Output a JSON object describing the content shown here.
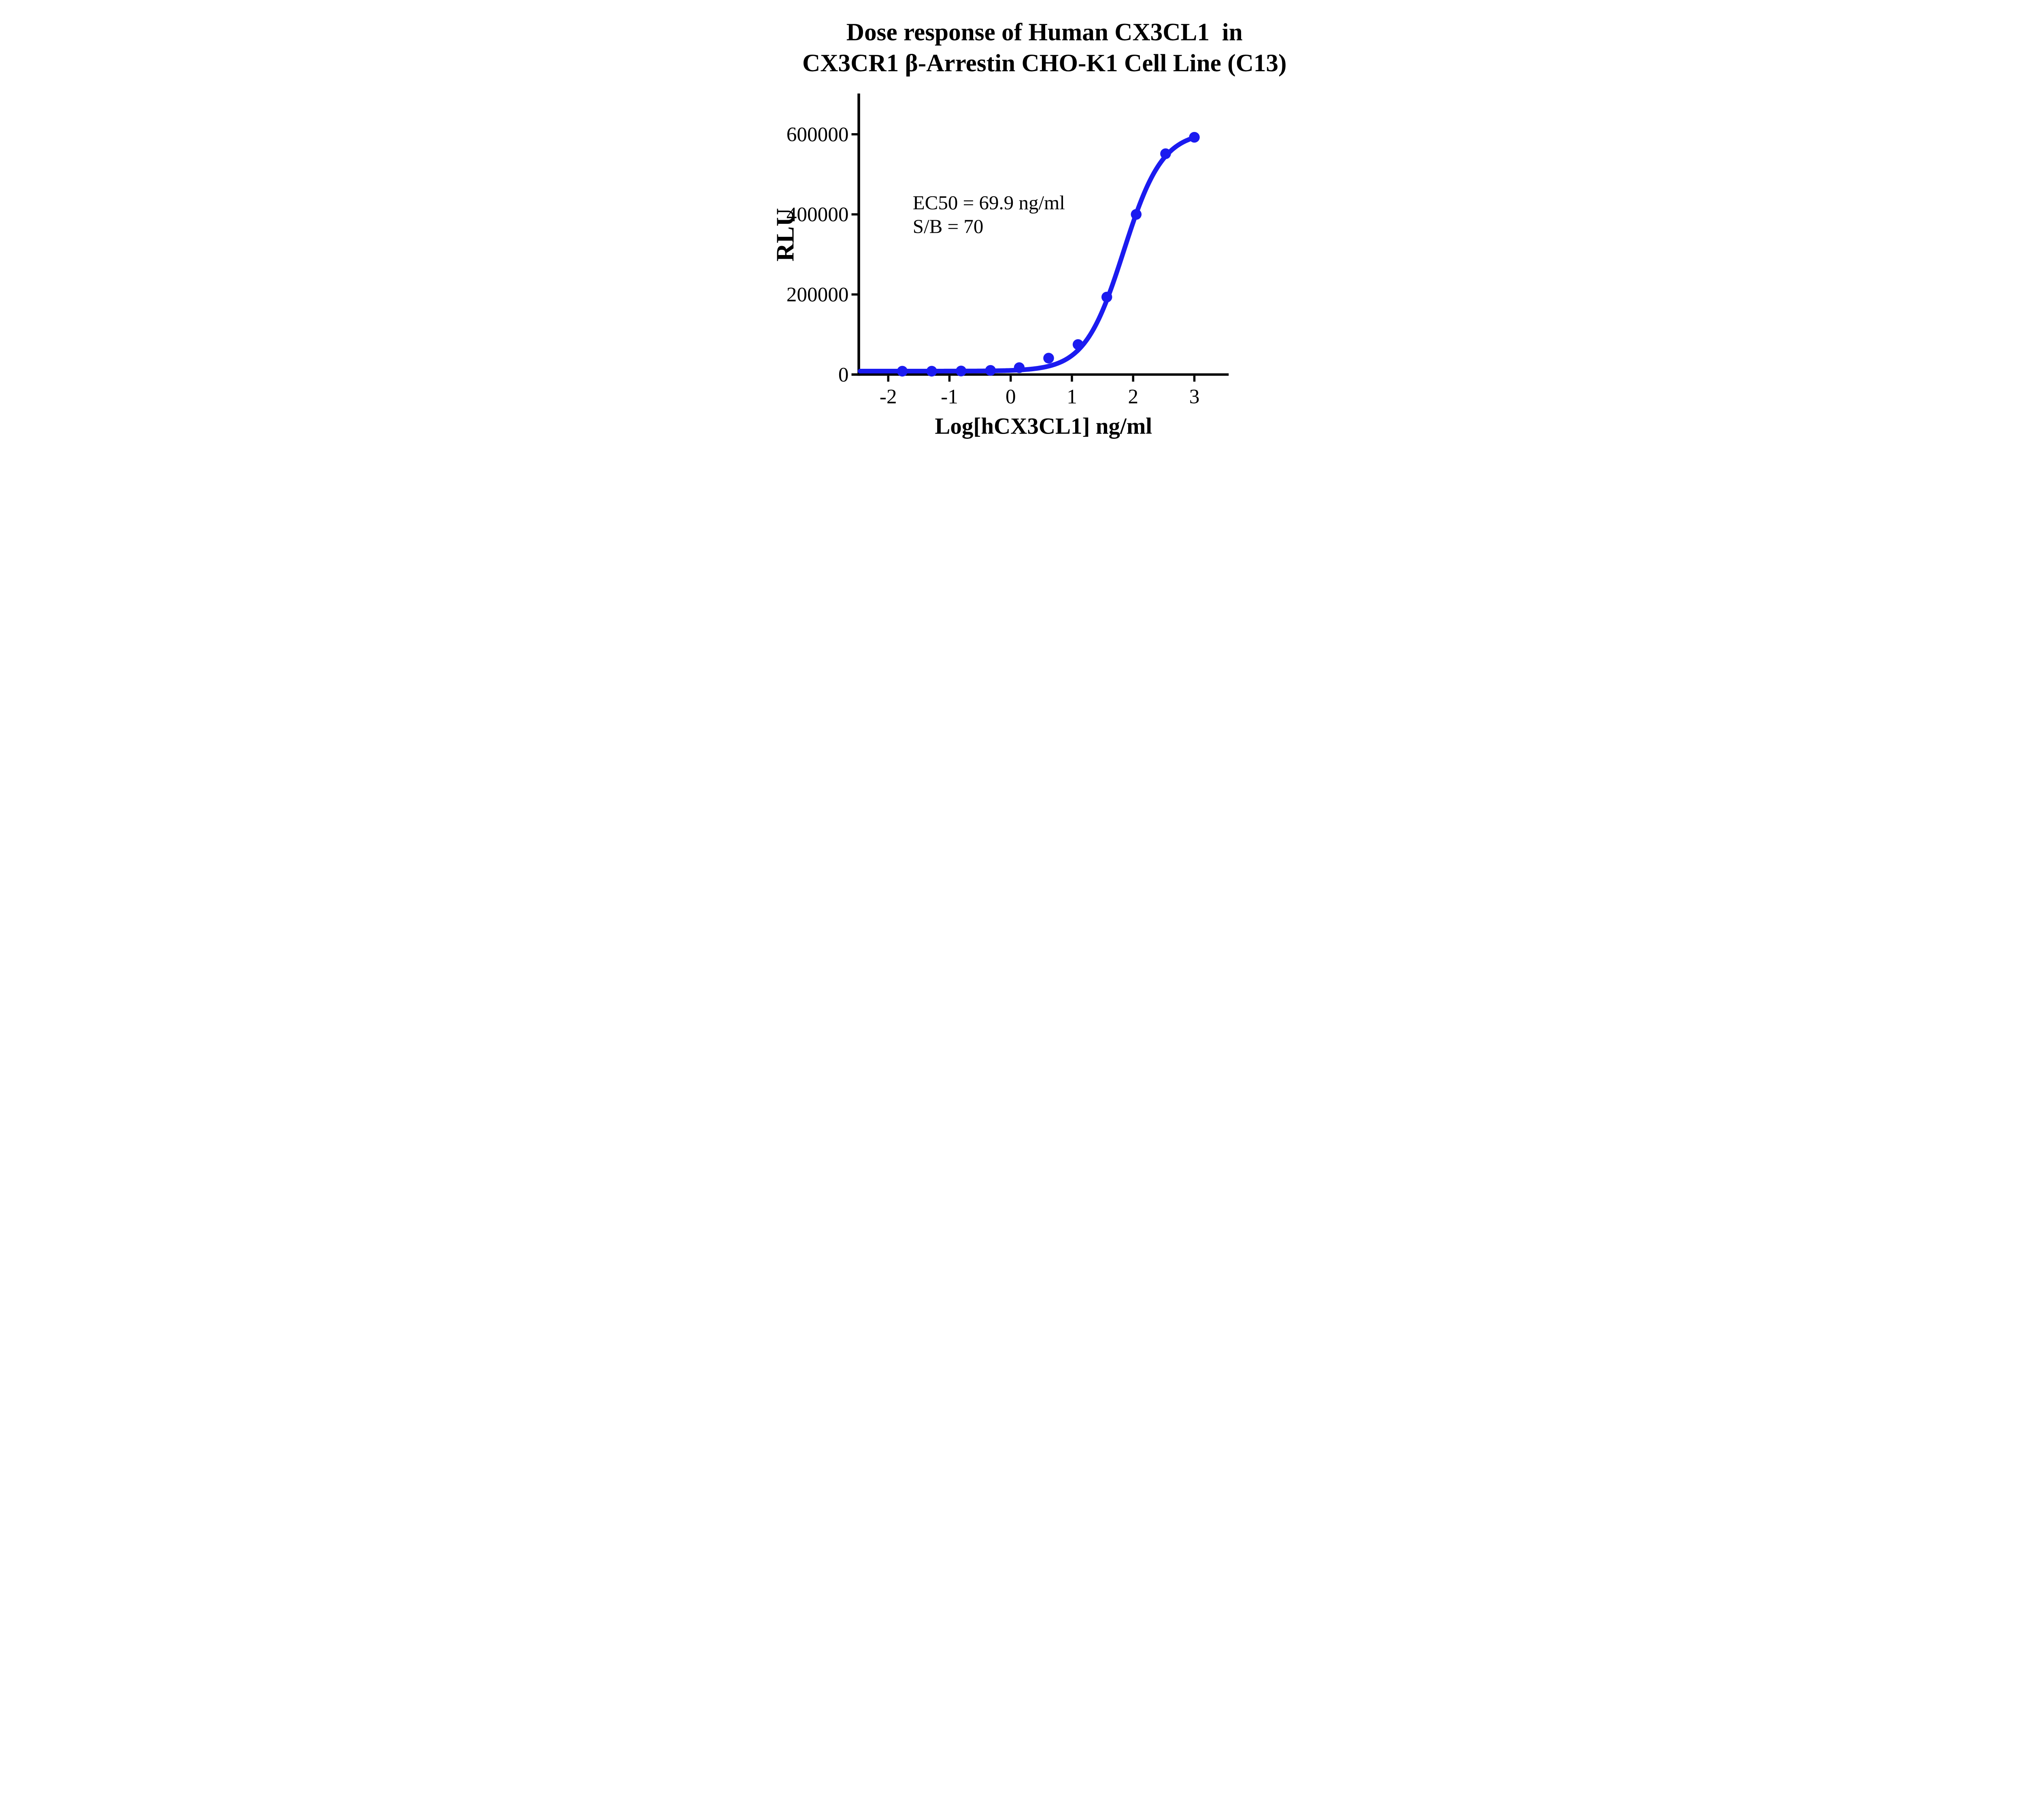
{
  "chart_data": {
    "type": "scatter",
    "title_line1": "Dose response of Human CX3CL1  in",
    "title_line2": "CX3CR1 β-Arrestin CHO-K1 Cell Line (C13)",
    "xlabel": "Log[hCX3CL1] ng/ml",
    "ylabel": "RLU",
    "annotation_line1": "EC50 = 69.9 ng/ml",
    "annotation_line2": "S/B = 70",
    "x_ticks": [
      -2,
      -1,
      0,
      1,
      2,
      3
    ],
    "y_ticks": [
      0,
      200000,
      400000,
      600000
    ],
    "xlim": [
      -2.46,
      3.56
    ],
    "ylim": [
      0,
      700000
    ],
    "grid": false,
    "legend_position": "none",
    "series_color": "#1b1bf0",
    "axis_color": "#000000",
    "points": [
      {
        "log_conc": -1.77,
        "rlu": 8400
      },
      {
        "log_conc": -1.29,
        "rlu": 8400
      },
      {
        "log_conc": -0.81,
        "rlu": 8900
      },
      {
        "log_conc": -0.33,
        "rlu": 10400
      },
      {
        "log_conc": 0.14,
        "rlu": 17200
      },
      {
        "log_conc": 0.62,
        "rlu": 41000
      },
      {
        "log_conc": 1.1,
        "rlu": 75000
      },
      {
        "log_conc": 1.57,
        "rlu": 193500
      },
      {
        "log_conc": 2.05,
        "rlu": 400000
      },
      {
        "log_conc": 2.53,
        "rlu": 551500
      },
      {
        "log_conc": 3.0,
        "rlu": 592500
      }
    ],
    "fit": {
      "model": "4PL",
      "bottom": 8600,
      "top": 607000,
      "log_ec50": 1.8445,
      "hill_slope": 1.37,
      "ec50_label_value": "69.9",
      "s_over_b_value": "70"
    }
  }
}
